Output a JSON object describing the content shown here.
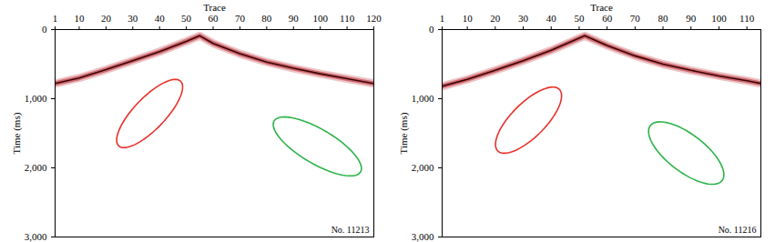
{
  "chart_data": [
    {
      "type": "seismic",
      "x_label": "Trace",
      "y_label": "Time (ms)",
      "xlim": [
        1,
        120
      ],
      "xticks": [
        1,
        10,
        20,
        30,
        40,
        50,
        60,
        70,
        80,
        90,
        100,
        110,
        120
      ],
      "ylim": [
        0,
        3000
      ],
      "yticks": [
        0,
        1000,
        2000,
        3000
      ],
      "annotation": "No. 11213",
      "x": [
        1,
        10,
        20,
        30,
        40,
        50,
        55,
        60,
        70,
        80,
        90,
        100,
        110,
        120
      ],
      "series": [
        {
          "color": "#b5121b",
          "values": [
            780,
            700,
            580,
            450,
            320,
            170,
            90,
            200,
            350,
            470,
            560,
            640,
            710,
            780
          ]
        }
      ],
      "ellipses": [
        {
          "color": "#e8312a",
          "center": [
            36.3,
            1214
          ],
          "major_end": [
            47.6,
            738
          ],
          "minor_end": [
            41.2,
            1345
          ]
        },
        {
          "color": "#2db34a",
          "center": [
            98.9,
            1690
          ],
          "major_end": [
            114.8,
            2071
          ],
          "minor_end": [
            94.6,
            1881
          ]
        }
      ]
    },
    {
      "type": "seismic",
      "x_label": "Trace",
      "y_label": "Time (ms)",
      "xlim": [
        1,
        115
      ],
      "xticks": [
        1,
        10,
        20,
        30,
        40,
        50,
        60,
        70,
        80,
        90,
        100,
        110
      ],
      "ylim": [
        0,
        3000
      ],
      "yticks": [
        0,
        1000,
        2000,
        3000
      ],
      "annotation": "No. 11216",
      "x": [
        1,
        10,
        20,
        30,
        40,
        52,
        60,
        70,
        80,
        90,
        100,
        110,
        115
      ],
      "series": [
        {
          "color": "#b5121b",
          "values": [
            820,
            720,
            590,
            450,
            300,
            90,
            230,
            380,
            500,
            590,
            670,
            740,
            780
          ]
        }
      ],
      "ellipses": [
        {
          "color": "#e8312a",
          "center": [
            31.9,
            1310
          ],
          "major_end": [
            42.7,
            857
          ],
          "minor_end": [
            36.7,
            1464
          ]
        },
        {
          "color": "#2db34a",
          "center": [
            88.3,
            1786
          ],
          "major_end": [
            101,
            2190
          ],
          "minor_end": [
            83.8,
            1988
          ]
        }
      ]
    }
  ]
}
